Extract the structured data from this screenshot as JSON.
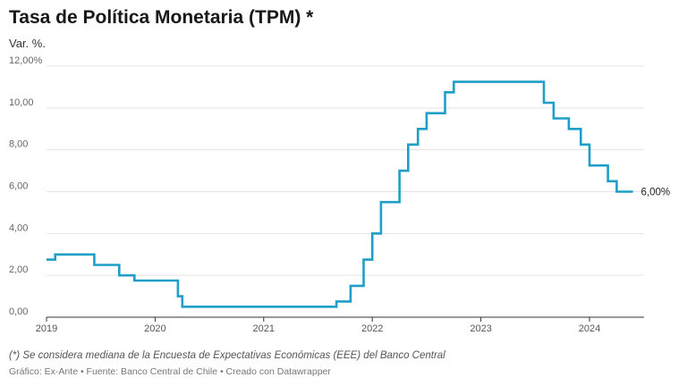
{
  "header": {
    "title": "Tasa de Política Monetaria (TPM) *",
    "subtitle": "Var. %."
  },
  "footer": {
    "note": "(*) Se considera mediana de la Encuesta de Expectativas Económicas (EEE) del Banco Central",
    "credits": "Gráfico: Ex-Ante • Fuente: Banco Central de Chile • Creado con Datawrapper"
  },
  "colors": {
    "line": "#1f9fc8",
    "grid": "#e3e3e3",
    "axis": "#333333"
  },
  "chart_data": {
    "type": "line",
    "step": true,
    "title": "Tasa de Política Monetaria (TPM) *",
    "ylabel": "Var. %.",
    "ylim": [
      0,
      12
    ],
    "xlim": [
      2019.0,
      2024.55
    ],
    "grid": true,
    "y_ticks": [
      {
        "value": 0,
        "label": "0,00"
      },
      {
        "value": 2,
        "label": "2,00"
      },
      {
        "value": 4,
        "label": "4,00"
      },
      {
        "value": 6,
        "label": "6,00"
      },
      {
        "value": 8,
        "label": "8,00"
      },
      {
        "value": 10,
        "label": "10,00"
      },
      {
        "value": 12,
        "label": "12,00%"
      }
    ],
    "x_ticks": [
      {
        "value": 2019,
        "label": "2019"
      },
      {
        "value": 2020,
        "label": "2020"
      },
      {
        "value": 2021,
        "label": "2021"
      },
      {
        "value": 2022,
        "label": "2022"
      },
      {
        "value": 2023,
        "label": "2023"
      },
      {
        "value": 2024,
        "label": "2024"
      }
    ],
    "end_label": "6,00%",
    "series": [
      {
        "x": [
          2019.0,
          2019.08,
          2019.44,
          2019.67,
          2019.81,
          2020.21,
          2020.25,
          2021.67,
          2021.8,
          2021.92,
          2022.0,
          2022.08,
          2022.25,
          2022.33,
          2022.42,
          2022.5,
          2022.67,
          2022.75,
          2023.58,
          2023.67,
          2023.81,
          2023.92,
          2024.0,
          2024.17,
          2024.25,
          2024.4
        ],
        "y": [
          2.75,
          3.0,
          2.5,
          2.0,
          1.75,
          1.0,
          0.5,
          0.75,
          1.5,
          2.75,
          4.0,
          5.5,
          7.0,
          8.25,
          9.0,
          9.75,
          10.75,
          11.25,
          10.25,
          9.5,
          9.0,
          8.25,
          7.25,
          6.5,
          6.0,
          6.0
        ]
      }
    ]
  }
}
